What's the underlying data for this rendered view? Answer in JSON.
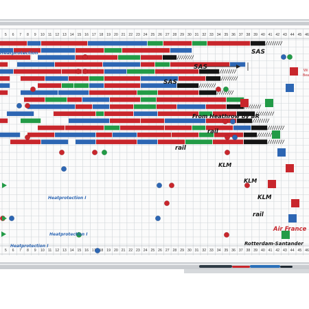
{
  "board": {
    "frame_color": "#c9ccd0",
    "surface_color": "#fbfbfb",
    "grid_color": "#cfd4d8",
    "colors": {
      "red": "#c8262c",
      "blue": "#2d66b3",
      "green": "#239b47",
      "black": "#151515",
      "dark_red": "#9c1f22"
    },
    "column_numbers": [
      "5",
      "6",
      "7",
      "8",
      "9",
      "10",
      "11",
      "12",
      "13",
      "14",
      "15",
      "16",
      "17",
      "18",
      "19",
      "20",
      "21",
      "22",
      "23",
      "24",
      "25",
      "26",
      "27",
      "28",
      "29",
      "30",
      "31",
      "32",
      "33",
      "34",
      "35",
      "36",
      "37",
      "38",
      "39",
      "40",
      "41",
      "42",
      "43",
      "44",
      "45",
      "46"
    ],
    "annotations": [
      {
        "text": "Heatprotection",
        "color": "blue"
      },
      {
        "text": "SAS",
        "color": "black"
      },
      {
        "text": "SAS",
        "color": "black"
      },
      {
        "text": "SAS",
        "color": "black"
      },
      {
        "text": "From Heathrow by BR",
        "color": "black"
      },
      {
        "text": "rail",
        "color": "black"
      },
      {
        "text": "rail",
        "color": "black"
      },
      {
        "text": "KLM",
        "color": "black"
      },
      {
        "text": "KLM",
        "color": "black"
      },
      {
        "text": "Heatprotection I",
        "color": "blue"
      },
      {
        "text": "KLM",
        "color": "black"
      },
      {
        "text": "rail",
        "color": "black"
      },
      {
        "text": "Heatprotection I",
        "color": "blue"
      },
      {
        "text": "Air France",
        "color": "red"
      },
      {
        "text": "Heatprotection I",
        "color": "blue"
      },
      {
        "text": "Rotterdam-Santander",
        "color": "black"
      }
    ],
    "side_label": "Wi",
    "side_label_2": "Bea"
  }
}
